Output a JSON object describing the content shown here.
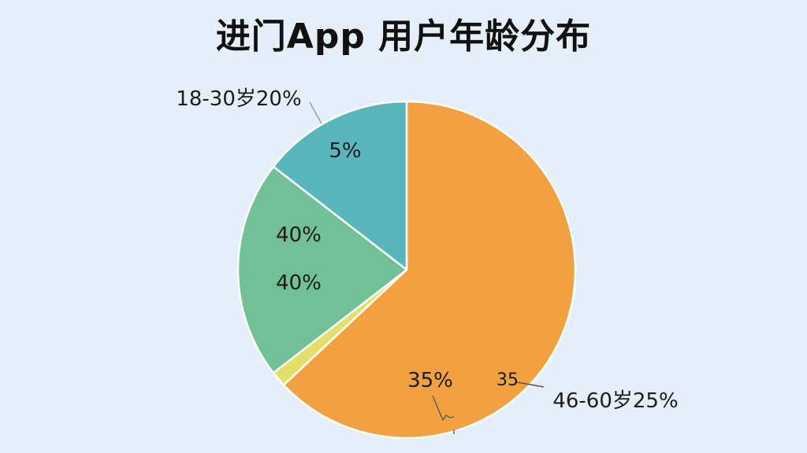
{
  "title": "进门App 用户年龄分布",
  "chart_data": {
    "type": "pie",
    "title": "进门App 用户年龄分布",
    "slices": [
      {
        "value": 63,
        "color": "#f2a141"
      },
      {
        "value": 1.5,
        "color": "#e3df69"
      },
      {
        "value": 21,
        "color": "#72c095"
      },
      {
        "value": 14.5,
        "color": "#5bb6bb"
      }
    ],
    "inner_labels": [
      "5%",
      "40%",
      "40%",
      "35%",
      "35"
    ],
    "callouts": [
      "18-30岁20%",
      "46-60岁25%"
    ]
  }
}
